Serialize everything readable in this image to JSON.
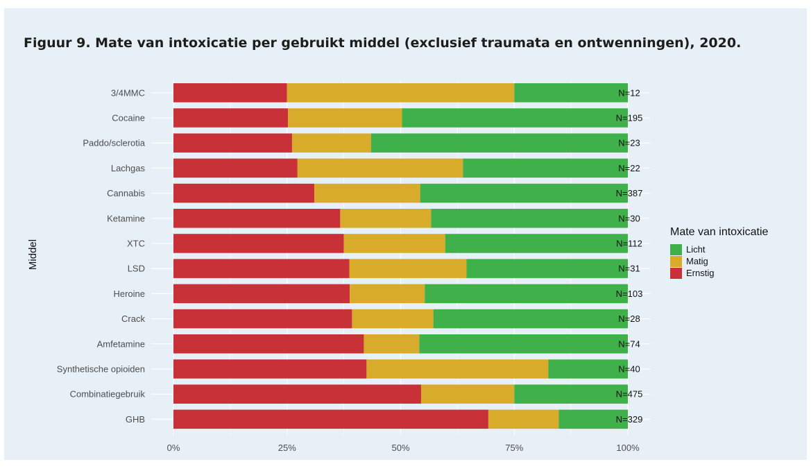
{
  "figure": {
    "title": "Figuur 9. Mate van intoxicatie per gebruikt middel (exclusief traumata en ontwenningen), 2020."
  },
  "chart_data": {
    "type": "bar",
    "orientation": "horizontal",
    "stacked": true,
    "normalized": true,
    "xlabel": "",
    "ylabel": "Middel",
    "xlim": [
      0,
      100
    ],
    "xticks": [
      "0%",
      "25%",
      "50%",
      "75%",
      "100%"
    ],
    "categories": [
      "3/4MMC",
      "Cocaine",
      "Paddo/sclerotia",
      "Lachgas",
      "Cannabis",
      "Ketamine",
      "XTC",
      "LSD",
      "Heroine",
      "Crack",
      "Amfetamine",
      "Synthetische opioiden",
      "Combinatiegebruik",
      "GHB"
    ],
    "n_labels": [
      "N=12",
      "N=195",
      "N=23",
      "N=22",
      "N=387",
      "N=30",
      "N=112",
      "N=31",
      "N=103",
      "N=28",
      "N=74",
      "N=40",
      "N=475",
      "N=329"
    ],
    "series": [
      {
        "name": "Ernstig",
        "color": "#c83137",
        "values": [
          25,
          25.2,
          26.1,
          27.3,
          31,
          36.7,
          37.5,
          38.7,
          38.8,
          39.3,
          41.9,
          42.5,
          54.5,
          69.3
        ]
      },
      {
        "name": "Matig",
        "color": "#d9ab2a",
        "values": [
          50,
          25.1,
          17.4,
          36.4,
          23.3,
          20,
          22.3,
          25.8,
          16.5,
          17.9,
          12.2,
          40,
          20.5,
          15.5
        ]
      },
      {
        "name": "Licht",
        "color": "#40b14a",
        "values": [
          25,
          49.7,
          56.5,
          36.3,
          45.7,
          43.3,
          40.2,
          35.5,
          44.7,
          42.8,
          45.9,
          17.5,
          25,
          15.2
        ]
      }
    ],
    "legend": {
      "title": "Mate van intoxicatie",
      "position": "right",
      "items": [
        {
          "label": "Licht",
          "color": "#40b14a"
        },
        {
          "label": "Matig",
          "color": "#d9ab2a"
        },
        {
          "label": "Ernstig",
          "color": "#c83137"
        }
      ]
    },
    "grid": true
  }
}
